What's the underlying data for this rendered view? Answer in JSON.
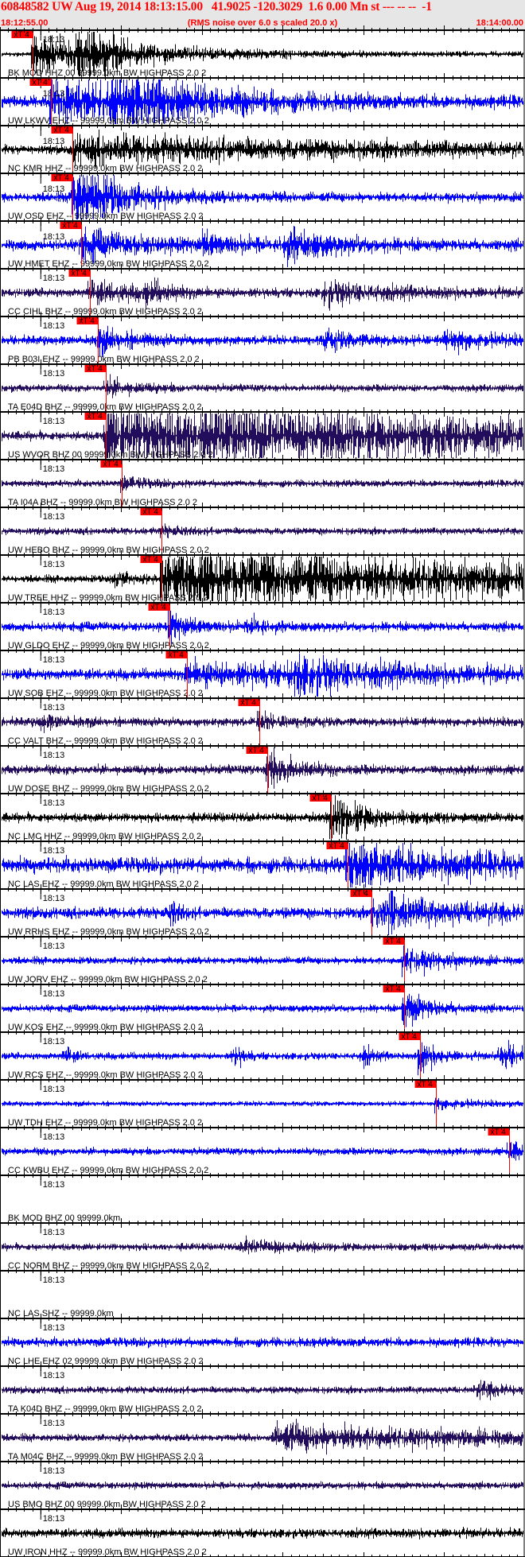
{
  "header": {
    "title": "60848582 UW Aug 19, 2014 18:13:15.00   41.9025 -120.3029  1.6 0.00 Mn st --- -- --  -1",
    "start_time": "18:12:55.00",
    "note": "(RMS noise over 6.0 s scaled 20.0 x)",
    "end_time": "18:14:00.00"
  },
  "time_axis": {
    "start": "18:12:55",
    "end": "18:14:00",
    "minute_label": "18:13"
  },
  "colors": {
    "black": "#000000",
    "blue": "#0000ff",
    "navy": "#220c5c",
    "pick": "#ff0000",
    "header_bg": "#e6e6e6"
  },
  "pick_label": "xT 4",
  "traces": [
    {
      "label": "BK MOD HHZ 00 99999.0km BW  HIGHPASS  2.0  2",
      "color": "black",
      "pick": "18:12:59.0"
    },
    {
      "label": "UW LKWV EHZ -- 99999.0km BW  HIGHPASS  2.0  2",
      "color": "blue",
      "pick": "18:13:01.3"
    },
    {
      "label": "NC KMR HHZ -- 99999.0km BW  HIGHPASS  2.0  2",
      "color": "black",
      "pick": "18:13:04.0"
    },
    {
      "label": "UW OSD EHZ -- 99999.0km BW  HIGHPASS  2.0  2",
      "color": "blue",
      "pick": "18:13:04.0"
    },
    {
      "label": "UW HMET EHZ -- 99999.0km BW  HIGHPASS  2.0  2",
      "color": "blue",
      "pick": "18:13:05.0"
    },
    {
      "label": "CC CIHL BHZ -- 99999.0km BW  HIGHPASS  2.0  2",
      "color": "navy",
      "pick": "18:13:06.1"
    },
    {
      "label": "PB B03I EHZ -- 99999.0km BW  HIGHPASS  2.0  2",
      "color": "blue",
      "pick": "18:13:07.1"
    },
    {
      "label": "TA E04D BHZ -- 99999.0km BW  HIGHPASS  2.0  2",
      "color": "navy",
      "pick": "18:13:08.1"
    },
    {
      "label": "US WVOR BHZ 00 99999.0km BW  HIGHPASS  2.0  2",
      "color": "navy",
      "pick": "18:13:08.1"
    },
    {
      "label": "TA I04A BHZ -- 99999.0km BW  HIGHPASS  2.0  2",
      "color": "navy",
      "pick": "18:13:10.1"
    },
    {
      "label": "UW HEBO BHZ -- 99999.0km BW  HIGHPASS  2.0  2",
      "color": "navy",
      "pick": "18:13:15.0"
    },
    {
      "label": "UW TREE HHZ -- 99999.0km BW  HIGHPASS  2.0  2",
      "color": "black",
      "pick": "18:13:15.0"
    },
    {
      "label": "UW GLDO EHZ -- 99999.0km BW  HIGHPASS  2.0  2",
      "color": "blue",
      "pick": "18:13:16.0"
    },
    {
      "label": "UW SOB EHZ -- 99999.0km BW  HIGHPASS  2.0  2",
      "color": "blue",
      "pick": "18:13:18.1"
    },
    {
      "label": "CC VALT BHZ -- 99999.0km BW  HIGHPASS  2.0  2",
      "color": "navy",
      "pick": "18:13:27.1"
    },
    {
      "label": "UW DOSE BHZ -- 99999.0km BW  HIGHPASS  2.0  2",
      "color": "navy",
      "pick": "18:13:28.1"
    },
    {
      "label": "NC LMC HHZ -- 99999.0km BW  HIGHPASS  2.0  2",
      "color": "black",
      "pick": "18:13:36.0"
    },
    {
      "label": "NC LAS EHZ -- 99999.0km BW  HIGHPASS  2.0  2",
      "color": "blue",
      "pick": "18:13:38.0"
    },
    {
      "label": "UW RRHS EHZ -- 99999.0km BW  HIGHPASS  2.0  2",
      "color": "blue",
      "pick": "18:13:41.0"
    },
    {
      "label": "UW JORV EHZ -- 99999.0km BW  HIGHPASS  2.0  2",
      "color": "blue",
      "pick": "18:13:45.0"
    },
    {
      "label": "UW KOS EHZ -- 99999.0km BW  HIGHPASS  2.0  2",
      "color": "blue",
      "pick": "18:13:45.0"
    },
    {
      "label": "UW RCS EHZ -- 99999.0km BW  HIGHPASS  2.0  2",
      "color": "blue",
      "pick": "18:13:47.0"
    },
    {
      "label": "UW TDH EHZ -- 99999.0km BW  HIGHPASS  2.0  2",
      "color": "blue",
      "pick": "18:13:49.0"
    },
    {
      "label": "CC KWBU EHZ -- 99999.0km BW  HIGHPASS  2.0  2",
      "color": "blue",
      "pick": "18:13:58.0"
    },
    {
      "label": "BK MOD BHZ 00 99999.0km",
      "color": "none",
      "pick": null
    },
    {
      "label": "CC NORM BHZ -- 99999.0km BW  HIGHPASS  2.0  2",
      "color": "navy",
      "pick": null
    },
    {
      "label": "NC LAS SHZ -- 99999.0km",
      "color": "none",
      "pick": null
    },
    {
      "label": "NC LHE EHZ 02 99999.0km BW  HIGHPASS  2.0  2",
      "color": "blue",
      "pick": null
    },
    {
      "label": "TA K04D BHZ -- 99999.0km BW  HIGHPASS  2.0  2",
      "color": "navy",
      "pick": null
    },
    {
      "label": "TA M04C BHZ -- 99999.0km BW  HIGHPASS  2.0  2",
      "color": "navy",
      "pick": null
    },
    {
      "label": "US BMO BHZ 00 99999.0km BW  HIGHPASS  2.0  2",
      "color": "navy",
      "pick": null
    },
    {
      "label": "UW IRON HHZ -- 99999.0km BW  HIGHPASS  2.0  2",
      "color": "black",
      "pick": null
    }
  ]
}
